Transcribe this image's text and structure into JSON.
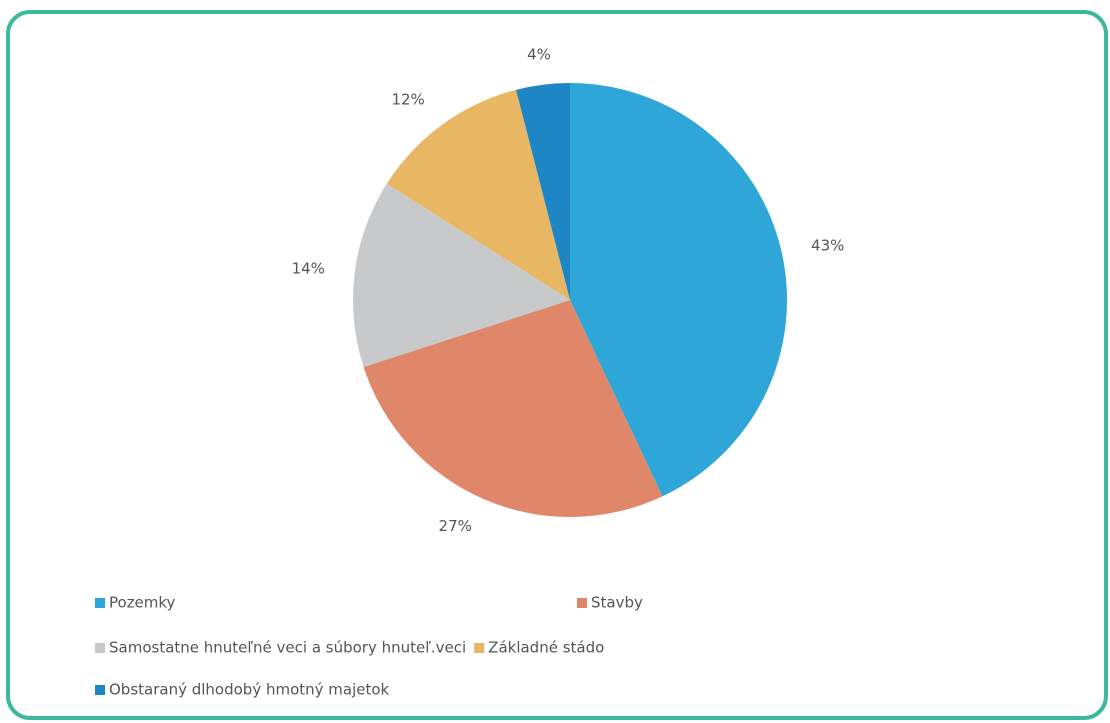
{
  "chart_data": {
    "type": "pie",
    "categories": [
      "Pozemky",
      "Stavby",
      "Samostatne hnuteľné veci a súbory hnuteľ.veci",
      "Základné stádo",
      "Obstaraný dlhodobý hmotný majetok"
    ],
    "values": [
      43,
      27,
      14,
      12,
      4
    ],
    "value_labels": [
      "43%",
      "27%",
      "14%",
      "12%",
      "4%"
    ],
    "colors": [
      "#2ea6d8",
      "#e0876a",
      "#c8c9cb",
      "#e8b764",
      "#1f86c6"
    ],
    "legend": "bottom"
  }
}
